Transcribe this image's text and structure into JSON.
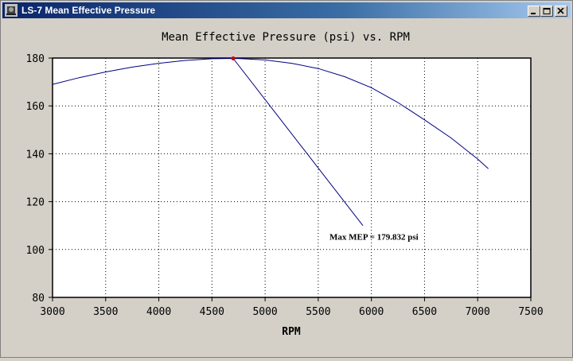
{
  "window": {
    "title": "LS-7 Mean Effective Pressure",
    "icon": "engine-app-icon",
    "controls": [
      "minimize",
      "maximize",
      "close"
    ]
  },
  "colors": {
    "titlebar": "#0a246a",
    "curve": "#000080",
    "marker": "#cc0000",
    "grid": "#000000"
  },
  "chart_data": {
    "type": "line",
    "title": "Mean Effective Pressure (psi) vs. RPM",
    "xlabel": "RPM",
    "ylabel": "",
    "xlim": [
      3000,
      7500
    ],
    "ylim": [
      80,
      180
    ],
    "xticks": [
      "3000",
      "3500",
      "4000",
      "4500",
      "5000",
      "5500",
      "6000",
      "6500",
      "7000",
      "7500"
    ],
    "yticks": [
      "80",
      "100",
      "120",
      "140",
      "160",
      "180"
    ],
    "grid": true,
    "series": [
      {
        "x": [
          3000,
          3250,
          3500,
          3750,
          4000,
          4250,
          4500,
          4700,
          4750,
          5000,
          5250,
          5500,
          5750,
          6000,
          6250,
          6500,
          6750,
          7000,
          7100
        ],
        "y": [
          169.0,
          171.8,
          174.2,
          176.2,
          177.8,
          179.0,
          179.7,
          179.832,
          179.8,
          179.2,
          177.8,
          175.6,
          172.2,
          167.6,
          161.4,
          154.2,
          146.6,
          137.8,
          133.8
        ]
      }
    ],
    "max_point": {
      "x": 4700,
      "y": 179.832
    },
    "annotation": {
      "text": "Max MEP = 179.832 psi",
      "pointer_end": {
        "x": 5920,
        "y": 110
      }
    }
  }
}
